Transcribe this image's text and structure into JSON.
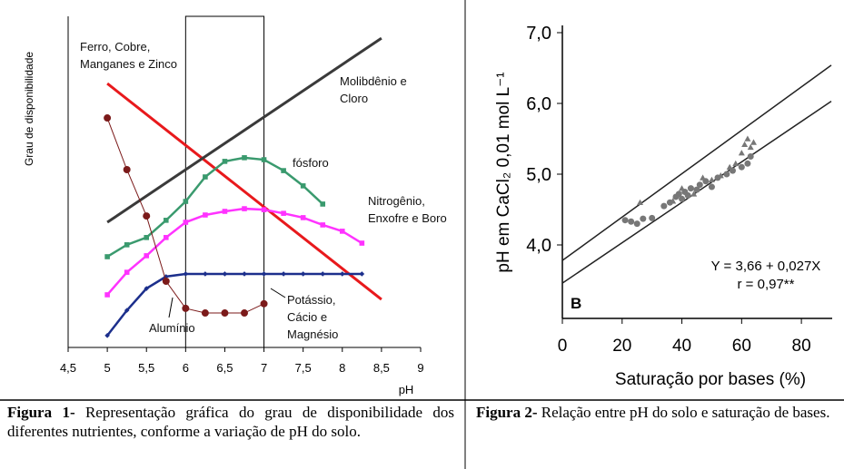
{
  "chart_data": [
    {
      "type": "line",
      "y_label": "Grau de disponibilidade",
      "x_label": "pH",
      "xlim": [
        4.5,
        9
      ],
      "xticks": [
        {
          "value": 4.5,
          "label": "4,5"
        },
        5,
        {
          "value": 5.5,
          "label": "5,5"
        },
        6,
        {
          "value": 6.5,
          "label": "6,5"
        },
        7,
        {
          "value": 7.5,
          "label": "7,5"
        },
        8,
        {
          "value": 8.5,
          "label": "8,5"
        },
        9
      ],
      "ylim": [
        0,
        10
      ],
      "highlight_x": [
        6,
        7
      ],
      "series": [
        {
          "name": "Ferro, Cobre, Manganes e Zinco",
          "color": "#e8191c",
          "marker": "none",
          "x": [
            5,
            8.5
          ],
          "values": [
            7.97,
            1.45
          ]
        },
        {
          "name": "Molibdênio e Cloro",
          "color": "#3a3a3a",
          "marker": "none",
          "x": [
            5,
            8.5
          ],
          "values": [
            3.78,
            9.34
          ]
        },
        {
          "name": "fósforo",
          "color": "#3a9a6e",
          "marker": "square",
          "x": [
            5,
            5.25,
            5.5,
            5.75,
            6,
            6.25,
            6.5,
            6.75,
            7,
            7.25,
            7.5,
            7.75
          ],
          "values": [
            2.74,
            3.1,
            3.32,
            3.84,
            4.41,
            5.15,
            5.62,
            5.73,
            5.67,
            5.34,
            4.88,
            4.33
          ]
        },
        {
          "name": "Nitrogênio, Enxofre e Boro",
          "color": "#ff33ff",
          "marker": "square",
          "x": [
            5,
            5.25,
            5.5,
            5.75,
            6,
            6.25,
            6.5,
            6.75,
            7,
            7.25,
            7.5,
            7.75,
            8,
            8.25
          ],
          "values": [
            1.59,
            2.27,
            2.77,
            3.32,
            3.78,
            4.0,
            4.11,
            4.19,
            4.16,
            4.05,
            3.92,
            3.7,
            3.51,
            3.15
          ]
        },
        {
          "name": "Potássio, Cácio e Magnésio",
          "color": "#1c2f8c",
          "marker": "diamond",
          "x": [
            5,
            5.25,
            5.5,
            5.75,
            6,
            6.25,
            6.5,
            6.75,
            7,
            7.25,
            7.5,
            7.75,
            8,
            8.25
          ],
          "values": [
            0.36,
            1.12,
            1.78,
            2.14,
            2.22,
            2.22,
            2.22,
            2.22,
            2.22,
            2.22,
            2.22,
            2.22,
            2.22,
            2.22
          ]
        },
        {
          "name": "Alumínio",
          "color": "#7b1a1a",
          "marker": "circle",
          "x": [
            5,
            5.25,
            5.5,
            5.75,
            6,
            6.25,
            6.5,
            6.75,
            7
          ],
          "values": [
            6.93,
            5.37,
            3.97,
            2.0,
            1.18,
            1.04,
            1.04,
            1.04,
            1.32
          ]
        }
      ]
    },
    {
      "type": "scatter",
      "y_label": "pH em CaCl₂ 0,01 mol L⁻¹",
      "x_label": "Saturação por bases (%)",
      "xlim": [
        0,
        90
      ],
      "xticks": [
        0,
        20,
        40,
        60,
        80
      ],
      "ylim": [
        3,
        7
      ],
      "yticks": [
        {
          "value": 4,
          "label": "4,0"
        },
        {
          "value": 5,
          "label": "5,0"
        },
        {
          "value": 6,
          "label": "6,0"
        },
        {
          "value": 7,
          "label": "7,0"
        }
      ],
      "series": [
        {
          "marker": "circle",
          "color": "#777777",
          "x": [
            21,
            23,
            25,
            27,
            30,
            34,
            36,
            38,
            39,
            40,
            41,
            42,
            43,
            45,
            46,
            48,
            50,
            52,
            55,
            57,
            60,
            62,
            63
          ],
          "values": [
            4.35,
            4.33,
            4.3,
            4.37,
            4.38,
            4.55,
            4.6,
            4.68,
            4.72,
            4.65,
            4.75,
            4.7,
            4.8,
            4.78,
            4.85,
            4.9,
            4.82,
            4.95,
            5.0,
            5.05,
            5.1,
            5.15,
            5.25
          ]
        },
        {
          "marker": "triangle",
          "color": "#777777",
          "x": [
            26,
            37,
            40,
            44,
            47,
            50,
            53,
            56,
            58,
            60,
            61,
            63,
            64,
            62
          ],
          "values": [
            4.6,
            4.62,
            4.8,
            4.72,
            4.95,
            4.92,
            4.98,
            5.1,
            5.15,
            5.3,
            5.42,
            5.38,
            5.45,
            5.5
          ]
        }
      ],
      "lines": [
        {
          "x": [
            0,
            90
          ],
          "values": [
            3.78,
            6.54
          ]
        },
        {
          "x": [
            0,
            90
          ],
          "values": [
            3.46,
            6.03
          ]
        }
      ],
      "equation": "Y = 3,66 + 0,027X",
      "correlation": "r = 0,97**",
      "panel_label": "B"
    }
  ],
  "captions": [
    {
      "label": "Figura 1-",
      "text": "Representação gráfica do grau de disponibilidade dos diferentes nutrientes, conforme a variação de pH do solo."
    },
    {
      "label": "Figura 2-",
      "text": "Relação entre pH do solo e saturação de bases."
    }
  ]
}
